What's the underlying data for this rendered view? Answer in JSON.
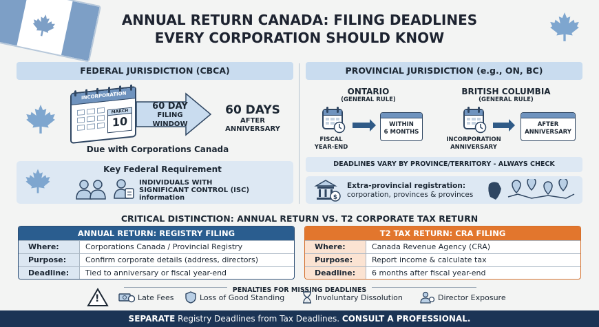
{
  "header": {
    "title_line1": "ANNUAL RETURN CANADA: FILING DEADLINES",
    "title_line2": "EVERY CORPORATION SHOULD KNOW"
  },
  "federal": {
    "heading": "FEDERAL JURISDICTION (CBCA)",
    "calendar_label": "INCORPORATION",
    "calendar_month": "MARCH",
    "calendar_day": "10",
    "window_label_1": "60 DAY",
    "window_label_2": "FILING",
    "window_label_3": "WINDOW",
    "days_big": "60 DAYS",
    "days_sub_1": "AFTER",
    "days_sub_2": "ANNIVERSARY",
    "due_text": "Due with Corporations Canada",
    "requirement_title": "Key Federal Requirement",
    "requirement_1": "INDIVIDUALS WITH",
    "requirement_2": "SIGNIFICANT CONTROL (ISC)",
    "requirement_3": "information"
  },
  "provincial": {
    "heading": "PROVINCIAL JURISDICTION (e.g., ON, BC)",
    "ontario_title": "ONTARIO",
    "ontario_rule": "(GENERAL RULE)",
    "ontario_start_1": "FISCAL",
    "ontario_start_2": "YEAR-END",
    "ontario_end_1": "WITHIN",
    "ontario_end_2": "6 MONTHS",
    "bc_title": "BRITISH COLUMBIA",
    "bc_rule": "(GENERAL RULE)",
    "bc_start_1": "INCORPORATION",
    "bc_start_2": "ANNIVERSARY",
    "bc_end_1": "AFTER",
    "bc_end_2": "ANNIVERSARY",
    "vary_note": "DEADLINES VARY BY PROVINCE/TERRITORY - ALWAYS CHECK",
    "extra_1": "Extra-provincial registration:",
    "extra_2": "corporation, provinces & provinces"
  },
  "distinction": {
    "title": "CRITICAL DISTINCTION:  ANNUAL RETURN VS. T2 CORPORATE TAX RETURN",
    "annual": {
      "header": "ANNUAL RETURN: REGISTRY FILING",
      "header_color": "#2a5d8f",
      "rows": [
        {
          "k": "Where:",
          "v": "Corporations Canada / Provincial Registry"
        },
        {
          "k": "Purpose:",
          "v": "Confirm corporate details (address, directors)"
        },
        {
          "k": "Deadline:",
          "v": "Tied to anniversary or fiscal year-end"
        }
      ]
    },
    "t2": {
      "header": "T2 TAX RETURN: CRA FILING",
      "header_color": "#e2762d",
      "rows": [
        {
          "k": "Where:",
          "v": "Canada Revenue Agency (CRA)"
        },
        {
          "k": "Purpose:",
          "v": "Report income & calculate tax"
        },
        {
          "k": "Deadline:",
          "v": "6 months after fiscal year-end"
        }
      ]
    }
  },
  "penalties": {
    "title": "PENALTIES FOR MISSING DEADLINES",
    "warning": "!",
    "items": [
      "Late Fees",
      "Loss of Good Standing",
      "Involuntary Dissolution",
      "Director Exposure"
    ]
  },
  "footer": {
    "part1": "SEPARATE",
    "part2": " Registry Deadlines from Tax Deadlines. ",
    "part3": "CONSULT A PROFESSIONAL."
  },
  "icons": [
    "maple-leaf-icon",
    "calendar-icon",
    "clock-icon",
    "people-icon",
    "person-id-icon",
    "bank-icon",
    "map-pin-icon",
    "warning-icon",
    "money-icon",
    "shield-icon",
    "hourglass-icon",
    "person-gear-icon"
  ],
  "colors": {
    "accent_blue": "#2a5d8f",
    "accent_orange": "#e2762d",
    "panel_blue": "#c9dcef",
    "footer_navy": "#1b3455"
  }
}
